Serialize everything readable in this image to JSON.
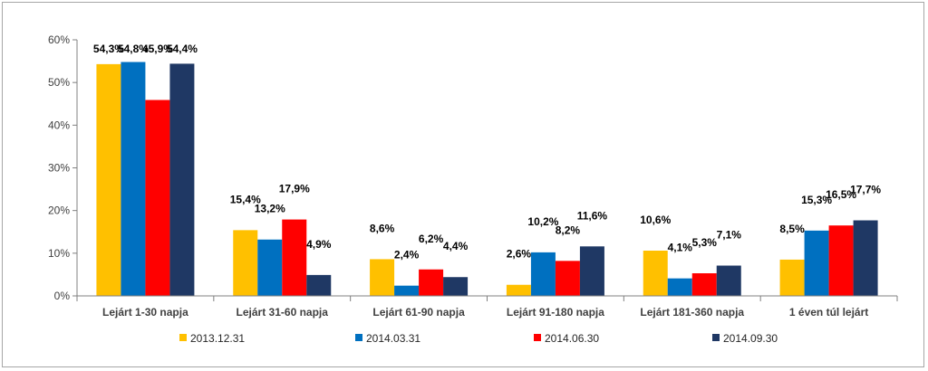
{
  "chart_data": {
    "type": "bar",
    "title": "",
    "xlabel": "",
    "ylabel": "",
    "ylim": [
      0,
      60
    ],
    "yticks": [
      0,
      10,
      20,
      30,
      40,
      50,
      60
    ],
    "ytick_labels": [
      "0%",
      "10%",
      "20%",
      "30%",
      "40%",
      "50%",
      "60%"
    ],
    "grid": false,
    "legend_position": "bottom",
    "categories": [
      "Lejárt 1-30 napja",
      "Lejárt 31-60 napja",
      "Lejárt 61-90 napja",
      "Lejárt 91-180 napja",
      "Lejárt 181-360 napja",
      "1 éven túl lejárt"
    ],
    "series": [
      {
        "name": "2013.12.31",
        "color": "#FFC000",
        "values": [
          54.3,
          15.4,
          8.6,
          2.6,
          10.6,
          8.5
        ],
        "labels": [
          "54,3%",
          "15,4%",
          "8,6%",
          "2,6%",
          "10,6%",
          "8,5%"
        ]
      },
      {
        "name": "2014.03.31",
        "color": "#0070C0",
        "values": [
          54.8,
          13.2,
          2.4,
          10.2,
          4.1,
          15.3
        ],
        "labels": [
          "54,8%",
          "13,2%",
          "2,4%",
          "10,2%",
          "4,1%",
          "15,3%"
        ]
      },
      {
        "name": "2014.06.30",
        "color": "#FF0000",
        "values": [
          45.9,
          17.9,
          6.2,
          8.2,
          5.3,
          16.5
        ],
        "labels": [
          "45,9%",
          "17,9%",
          "6,2%",
          "8,2%",
          "5,3%",
          "16,5%"
        ]
      },
      {
        "name": "2014.09.30",
        "color": "#1F3864",
        "values": [
          54.4,
          4.9,
          4.4,
          11.6,
          7.1,
          17.7
        ],
        "labels": [
          "54,4%",
          "4,9%",
          "4,4%",
          "11,6%",
          "7,1%",
          "17,7%"
        ]
      }
    ]
  }
}
